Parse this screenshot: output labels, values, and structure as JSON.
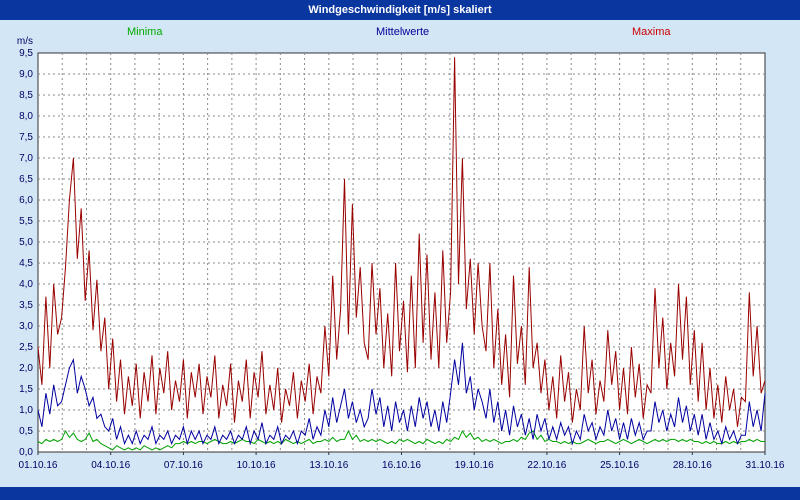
{
  "title_bar": {
    "title": "Windgeschwindigkeit [m/s] skaliert"
  },
  "legend": [
    {
      "label": "Minima",
      "color": "#00aa00"
    },
    {
      "label": "Mittelwerte",
      "color": "#000099"
    },
    {
      "label": "Maxima",
      "color": "#cc0000"
    }
  ],
  "colors": {
    "page_background": "#d3e6f5",
    "bar_background": "#0a36a0",
    "plot_background": "#ffffff",
    "plot_border": "#333333",
    "grid": "#8a8a8a",
    "axis_text": "#000066"
  },
  "chart_data": {
    "type": "line",
    "title": "Windgeschwindigkeit [m/s] skaliert",
    "xlabel": "",
    "ylabel": "m/s",
    "ylim": [
      0,
      9.5
    ],
    "y_tick_step": 0.5,
    "grid": "dashed",
    "legend_position": "top",
    "y_tick_labels": [
      "9,5",
      "9,0",
      "8,5",
      "8,0",
      "7,5",
      "7,0",
      "6,5",
      "6,0",
      "5,5",
      "5,0",
      "4,5",
      "4,0",
      "3,5",
      "3,0",
      "2,5",
      "2,0",
      "1,5",
      "1,0",
      "0,5",
      "0,0"
    ],
    "x_days": 31,
    "samples_per_day": 6,
    "x_ticks": [
      {
        "day": 1,
        "label": "01.10.16"
      },
      {
        "day": 4,
        "label": "04.10.16"
      },
      {
        "day": 7,
        "label": "07.10.16"
      },
      {
        "day": 10,
        "label": "10.10.16"
      },
      {
        "day": 13,
        "label": "13.10.16"
      },
      {
        "day": 16,
        "label": "16.10.16"
      },
      {
        "day": 19,
        "label": "19.10.16"
      },
      {
        "day": 22,
        "label": "22.10.16"
      },
      {
        "day": 25,
        "label": "25.10.16"
      },
      {
        "day": 28,
        "label": "28.10.16"
      },
      {
        "day": 31,
        "label": "31.10.16"
      }
    ],
    "series": [
      {
        "name": "Minima",
        "color": "#00a000",
        "values": [
          0.25,
          0.2,
          0.3,
          0.25,
          0.3,
          0.25,
          0.3,
          0.5,
          0.35,
          0.45,
          0.3,
          0.25,
          0.3,
          0.45,
          0.25,
          0.3,
          0.2,
          0.15,
          0.1,
          0.05,
          0.15,
          0.1,
          0.05,
          0.1,
          0.05,
          0.1,
          0.05,
          0.15,
          0.1,
          0.05,
          0.1,
          0.05,
          0.1,
          0.15,
          0.1,
          0.2,
          0.2,
          0.25,
          0.2,
          0.25,
          0.2,
          0.25,
          0.25,
          0.2,
          0.25,
          0.3,
          0.25,
          0.2,
          0.2,
          0.25,
          0.2,
          0.25,
          0.3,
          0.25,
          0.25,
          0.2,
          0.3,
          0.25,
          0.2,
          0.25,
          0.2,
          0.25,
          0.2,
          0.3,
          0.25,
          0.2,
          0.25,
          0.2,
          0.25,
          0.3,
          0.2,
          0.25,
          0.25,
          0.3,
          0.25,
          0.35,
          0.25,
          0.3,
          0.3,
          0.5,
          0.3,
          0.4,
          0.25,
          0.3,
          0.25,
          0.3,
          0.25,
          0.3,
          0.25,
          0.2,
          0.25,
          0.2,
          0.3,
          0.25,
          0.3,
          0.25,
          0.2,
          0.25,
          0.2,
          0.3,
          0.25,
          0.2,
          0.25,
          0.2,
          0.3,
          0.25,
          0.35,
          0.3,
          0.5,
          0.35,
          0.45,
          0.3,
          0.35,
          0.25,
          0.3,
          0.25,
          0.3,
          0.25,
          0.2,
          0.25,
          0.25,
          0.3,
          0.25,
          0.35,
          0.3,
          0.45,
          0.5,
          0.3,
          0.4,
          0.25,
          0.3,
          0.25,
          0.25,
          0.2,
          0.25,
          0.2,
          0.25,
          0.2,
          0.2,
          0.25,
          0.3,
          0.25,
          0.2,
          0.25,
          0.25,
          0.3,
          0.25,
          0.2,
          0.25,
          0.3,
          0.25,
          0.2,
          0.25,
          0.3,
          0.25,
          0.2,
          0.25,
          0.3,
          0.25,
          0.3,
          0.25,
          0.3,
          0.3,
          0.25,
          0.3,
          0.25,
          0.3,
          0.25,
          0.25,
          0.2,
          0.25,
          0.2,
          0.25,
          0.2,
          0.2,
          0.25,
          0.2,
          0.25,
          0.2,
          0.25,
          0.25,
          0.3,
          0.25,
          0.3,
          0.25,
          0.25
        ]
      },
      {
        "name": "Mittelwerte",
        "color": "#0000a0",
        "values": [
          1.0,
          0.6,
          1.4,
          0.9,
          1.6,
          1.1,
          1.2,
          1.6,
          2.0,
          2.2,
          1.4,
          1.8,
          1.5,
          1.1,
          1.3,
          0.8,
          0.9,
          0.6,
          0.5,
          0.8,
          0.3,
          0.6,
          0.2,
          0.4,
          0.2,
          0.5,
          0.2,
          0.4,
          0.3,
          0.6,
          0.2,
          0.4,
          0.3,
          0.5,
          0.2,
          0.4,
          0.3,
          0.6,
          0.2,
          0.5,
          0.3,
          0.5,
          0.2,
          0.4,
          0.3,
          0.6,
          0.2,
          0.4,
          0.3,
          0.5,
          0.2,
          0.4,
          0.3,
          0.6,
          0.2,
          0.5,
          0.3,
          0.7,
          0.2,
          0.4,
          0.3,
          0.6,
          0.2,
          0.4,
          0.3,
          0.5,
          0.2,
          0.5,
          0.4,
          0.8,
          0.3,
          0.6,
          0.4,
          1.0,
          0.6,
          1.3,
          0.7,
          1.1,
          1.5,
          0.8,
          1.2,
          0.7,
          1.0,
          0.6,
          0.8,
          1.5,
          0.9,
          1.3,
          0.6,
          1.1,
          0.5,
          1.2,
          0.7,
          1.0,
          0.5,
          1.1,
          0.6,
          1.3,
          0.8,
          1.2,
          0.6,
          1.0,
          0.5,
          1.2,
          0.7,
          1.4,
          2.2,
          1.6,
          2.6,
          1.4,
          1.8,
          1.0,
          1.5,
          1.2,
          0.8,
          1.5,
          0.7,
          1.2,
          0.5,
          1.0,
          0.4,
          1.1,
          0.6,
          0.9,
          0.4,
          0.8,
          0.3,
          0.9,
          0.5,
          0.8,
          0.3,
          0.6,
          0.3,
          0.7,
          0.4,
          0.6,
          0.2,
          0.5,
          0.3,
          0.9,
          0.5,
          0.7,
          0.3,
          0.6,
          0.4,
          1.0,
          0.5,
          0.8,
          0.3,
          0.7,
          0.3,
          0.8,
          0.4,
          0.7,
          0.3,
          0.5,
          0.5,
          1.2,
          0.7,
          1.0,
          0.5,
          0.9,
          0.6,
          1.3,
          0.7,
          1.1,
          0.5,
          0.9,
          0.4,
          0.9,
          0.3,
          0.7,
          0.3,
          0.5,
          0.2,
          0.6,
          0.3,
          0.5,
          0.2,
          0.4,
          0.4,
          1.2,
          0.6,
          1.0,
          0.5,
          1.4
        ]
      },
      {
        "name": "Maxima",
        "color": "#990000",
        "values": [
          2.5,
          1.6,
          3.7,
          2.0,
          4.0,
          2.8,
          3.2,
          4.4,
          6.0,
          7.0,
          4.6,
          5.8,
          3.6,
          4.8,
          2.9,
          4.1,
          2.4,
          3.2,
          1.5,
          2.7,
          1.2,
          2.2,
          0.9,
          1.8,
          1.1,
          2.1,
          0.8,
          1.9,
          1.2,
          2.3,
          0.9,
          2.0,
          1.4,
          2.4,
          1.0,
          1.7,
          1.2,
          2.2,
          0.8,
          1.9,
          1.3,
          2.1,
          0.9,
          1.8,
          1.3,
          2.3,
          0.8,
          1.6,
          1.1,
          2.1,
          0.7,
          1.7,
          1.2,
          2.2,
          0.8,
          1.9,
          1.3,
          2.4,
          0.9,
          1.6,
          1.0,
          2.0,
          0.7,
          1.5,
          1.1,
          1.9,
          0.8,
          1.7,
          1.2,
          2.1,
          0.9,
          1.8,
          1.4,
          3.0,
          1.8,
          4.2,
          2.2,
          3.4,
          6.5,
          2.8,
          5.9,
          3.2,
          4.4,
          2.6,
          2.2,
          4.5,
          2.8,
          3.9,
          2.0,
          3.3,
          1.8,
          4.5,
          2.4,
          3.6,
          1.9,
          4.2,
          2.0,
          5.2,
          2.6,
          4.7,
          2.2,
          3.8,
          2.0,
          4.8,
          2.6,
          3.8,
          9.4,
          4.0,
          7.0,
          3.4,
          4.6,
          2.8,
          4.5,
          3.0,
          2.4,
          4.5,
          2.0,
          3.4,
          1.6,
          2.8,
          1.3,
          4.2,
          2.1,
          3.0,
          1.6,
          4.4,
          2.0,
          2.6,
          1.4,
          2.2,
          1.0,
          1.8,
          0.8,
          2.3,
          1.2,
          1.9,
          0.7,
          1.5,
          1.0,
          3.0,
          1.4,
          2.2,
          0.9,
          1.7,
          1.2,
          2.9,
          1.6,
          2.4,
          1.0,
          2.0,
          0.9,
          2.5,
          1.3,
          2.1,
          0.8,
          1.6,
          1.4,
          3.9,
          2.0,
          3.2,
          1.5,
          2.6,
          1.8,
          4.0,
          2.2,
          3.7,
          1.6,
          2.9,
          1.2,
          2.6,
          1.0,
          2.0,
          0.8,
          1.6,
          0.7,
          1.8,
          1.0,
          1.5,
          0.6,
          1.3,
          1.2,
          3.8,
          1.8,
          3.0,
          1.4,
          1.7
        ]
      }
    ]
  }
}
